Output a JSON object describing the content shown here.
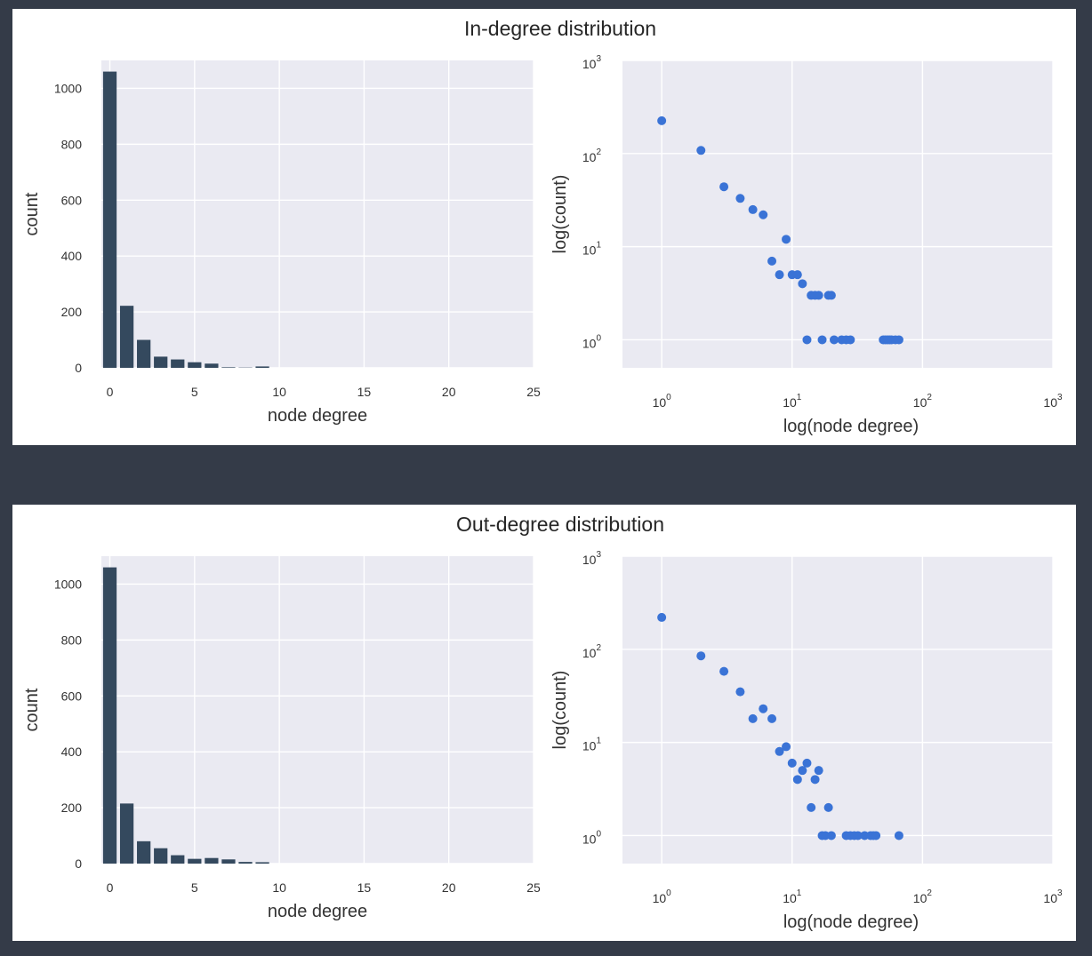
{
  "colors": {
    "bar": "#34495e",
    "point": "#3a73d6",
    "plot_bg": "#eaeaf2"
  },
  "chart_data": [
    {
      "title": "In-degree distribution",
      "charts": [
        {
          "type": "bar",
          "xlabel": "node degree",
          "ylabel": "count",
          "xlim": [
            -0.5,
            25
          ],
          "ylim": [
            0,
            1100
          ],
          "xticks": [
            0,
            5,
            10,
            15,
            20,
            25
          ],
          "yticks": [
            0,
            200,
            400,
            600,
            800,
            1000
          ],
          "grid": true,
          "x": [
            0,
            1,
            2,
            3,
            4,
            5,
            6,
            7,
            8,
            9
          ],
          "values": [
            1060,
            222,
            100,
            40,
            30,
            20,
            15,
            2,
            1,
            5
          ]
        },
        {
          "type": "scatter",
          "xscale": "log",
          "yscale": "log",
          "xlabel": "log(node degree)",
          "ylabel": "log(count)",
          "xlim": [
            0.5,
            1000
          ],
          "ylim": [
            0.5,
            1000
          ],
          "xticks": [
            1,
            10,
            100,
            1000
          ],
          "yticks": [
            1,
            10,
            100,
            1000
          ],
          "grid": true,
          "points": [
            [
              1,
              225
            ],
            [
              2,
              108
            ],
            [
              3,
              44
            ],
            [
              4,
              33
            ],
            [
              5,
              25
            ],
            [
              6,
              22
            ],
            [
              9,
              12
            ],
            [
              7,
              7
            ],
            [
              8,
              5
            ],
            [
              10,
              5
            ],
            [
              11,
              5
            ],
            [
              12,
              4
            ],
            [
              14,
              3
            ],
            [
              15,
              3
            ],
            [
              16,
              3
            ],
            [
              19,
              3
            ],
            [
              20,
              3
            ],
            [
              13,
              1
            ],
            [
              17,
              1
            ],
            [
              21,
              1
            ],
            [
              24,
              1
            ],
            [
              26,
              1
            ],
            [
              28,
              1
            ],
            [
              50,
              1
            ],
            [
              52,
              1
            ],
            [
              54,
              1
            ],
            [
              56,
              1
            ],
            [
              58,
              1
            ],
            [
              62,
              1
            ],
            [
              66,
              1
            ]
          ]
        }
      ]
    },
    {
      "title": "Out-degree distribution",
      "charts": [
        {
          "type": "bar",
          "xlabel": "node degree",
          "ylabel": "count",
          "xlim": [
            -0.5,
            25
          ],
          "ylim": [
            0,
            1100
          ],
          "xticks": [
            0,
            5,
            10,
            15,
            20,
            25
          ],
          "yticks": [
            0,
            200,
            400,
            600,
            800,
            1000
          ],
          "grid": true,
          "x": [
            0,
            1,
            2,
            3,
            4,
            5,
            6,
            7,
            8,
            9
          ],
          "values": [
            1060,
            215,
            80,
            55,
            30,
            17,
            20,
            15,
            6,
            5
          ]
        },
        {
          "type": "scatter",
          "xscale": "log",
          "yscale": "log",
          "xlabel": "log(node degree)",
          "ylabel": "log(count)",
          "xlim": [
            0.5,
            1000
          ],
          "ylim": [
            0.5,
            1000
          ],
          "xticks": [
            1,
            10,
            100,
            1000
          ],
          "yticks": [
            1,
            10,
            100,
            1000
          ],
          "grid": true,
          "points": [
            [
              1,
              220
            ],
            [
              2,
              85
            ],
            [
              3,
              58
            ],
            [
              4,
              35
            ],
            [
              6,
              23
            ],
            [
              5,
              18
            ],
            [
              7,
              18
            ],
            [
              9,
              9
            ],
            [
              8,
              8
            ],
            [
              10,
              6
            ],
            [
              13,
              6
            ],
            [
              12,
              5
            ],
            [
              16,
              5
            ],
            [
              11,
              4
            ],
            [
              15,
              4
            ],
            [
              14,
              2
            ],
            [
              19,
              2
            ],
            [
              17,
              1
            ],
            [
              18,
              1
            ],
            [
              20,
              1
            ],
            [
              26,
              1
            ],
            [
              28,
              1
            ],
            [
              30,
              1
            ],
            [
              32,
              1
            ],
            [
              36,
              1
            ],
            [
              40,
              1
            ],
            [
              42,
              1
            ],
            [
              44,
              1
            ],
            [
              66,
              1
            ]
          ]
        }
      ]
    }
  ]
}
